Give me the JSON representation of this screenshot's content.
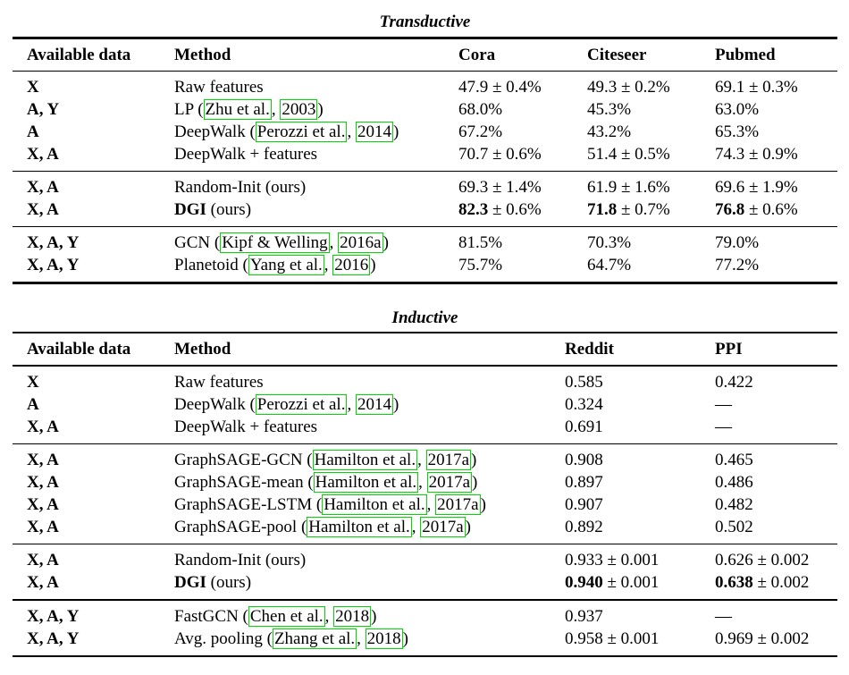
{
  "link_color": "#00d800",
  "tables": [
    {
      "title": "Transductive",
      "columns": [
        "Available data",
        "Method",
        "Cora",
        "Citeseer",
        "Pubmed"
      ],
      "groups": [
        {
          "rows": [
            {
              "available": "X",
              "method": [
                {
                  "text": "Raw features",
                  "style": "plain"
                }
              ],
              "values": [
                [
                  {
                    "text": "47.9 ± 0.4%",
                    "style": "plain"
                  }
                ],
                [
                  {
                    "text": "49.3 ± 0.2%",
                    "style": "plain"
                  }
                ],
                [
                  {
                    "text": "69.1 ± 0.3%",
                    "style": "plain"
                  }
                ]
              ]
            },
            {
              "available": "A, Y",
              "method": [
                {
                  "text": "LP (",
                  "style": "plain"
                },
                {
                  "text": "Zhu et al.",
                  "style": "link"
                },
                {
                  "text": ", ",
                  "style": "plain"
                },
                {
                  "text": "2003",
                  "style": "link"
                },
                {
                  "text": ")",
                  "style": "plain"
                }
              ],
              "values": [
                [
                  {
                    "text": "68.0%",
                    "style": "plain"
                  }
                ],
                [
                  {
                    "text": "45.3%",
                    "style": "plain"
                  }
                ],
                [
                  {
                    "text": "63.0%",
                    "style": "plain"
                  }
                ]
              ]
            },
            {
              "available": "A",
              "method": [
                {
                  "text": "DeepWalk (",
                  "style": "plain"
                },
                {
                  "text": "Perozzi et al.",
                  "style": "link"
                },
                {
                  "text": ", ",
                  "style": "plain"
                },
                {
                  "text": "2014",
                  "style": "link"
                },
                {
                  "text": ")",
                  "style": "plain"
                }
              ],
              "values": [
                [
                  {
                    "text": "67.2%",
                    "style": "plain"
                  }
                ],
                [
                  {
                    "text": "43.2%",
                    "style": "plain"
                  }
                ],
                [
                  {
                    "text": "65.3%",
                    "style": "plain"
                  }
                ]
              ]
            },
            {
              "available": "X, A",
              "method": [
                {
                  "text": "DeepWalk + features",
                  "style": "plain"
                }
              ],
              "values": [
                [
                  {
                    "text": "70.7 ± 0.6%",
                    "style": "plain"
                  }
                ],
                [
                  {
                    "text": "51.4 ± 0.5%",
                    "style": "plain"
                  }
                ],
                [
                  {
                    "text": "74.3 ± 0.9%",
                    "style": "plain"
                  }
                ]
              ]
            }
          ]
        },
        {
          "rows": [
            {
              "available": "X, A",
              "method": [
                {
                  "text": "Random-Init (ours)",
                  "style": "plain"
                }
              ],
              "values": [
                [
                  {
                    "text": "69.3 ± 1.4%",
                    "style": "plain"
                  }
                ],
                [
                  {
                    "text": "61.9 ± 1.6%",
                    "style": "plain"
                  }
                ],
                [
                  {
                    "text": "69.6 ± 1.9%",
                    "style": "plain"
                  }
                ]
              ]
            },
            {
              "available": "X, A",
              "method": [
                {
                  "text": "DGI",
                  "style": "bold"
                },
                {
                  "text": " (ours)",
                  "style": "plain"
                }
              ],
              "values": [
                [
                  {
                    "text": "82.3",
                    "style": "bold"
                  },
                  {
                    "text": " ± 0.6%",
                    "style": "plain"
                  }
                ],
                [
                  {
                    "text": "71.8",
                    "style": "bold"
                  },
                  {
                    "text": " ± 0.7%",
                    "style": "plain"
                  }
                ],
                [
                  {
                    "text": "76.8",
                    "style": "bold"
                  },
                  {
                    "text": " ± 0.6%",
                    "style": "plain"
                  }
                ]
              ]
            }
          ]
        },
        {
          "rows": [
            {
              "available": "X, A, Y",
              "method": [
                {
                  "text": "GCN (",
                  "style": "plain"
                },
                {
                  "text": "Kipf & Welling",
                  "style": "link"
                },
                {
                  "text": ", ",
                  "style": "plain"
                },
                {
                  "text": "2016a",
                  "style": "link"
                },
                {
                  "text": ")",
                  "style": "plain"
                }
              ],
              "values": [
                [
                  {
                    "text": "81.5%",
                    "style": "plain"
                  }
                ],
                [
                  {
                    "text": "70.3%",
                    "style": "plain"
                  }
                ],
                [
                  {
                    "text": "79.0%",
                    "style": "plain"
                  }
                ]
              ]
            },
            {
              "available": "X, A, Y",
              "method": [
                {
                  "text": "Planetoid (",
                  "style": "plain"
                },
                {
                  "text": "Yang et al.",
                  "style": "link"
                },
                {
                  "text": ", ",
                  "style": "plain"
                },
                {
                  "text": "2016",
                  "style": "link"
                },
                {
                  "text": ")",
                  "style": "plain"
                }
              ],
              "values": [
                [
                  {
                    "text": "75.7%",
                    "style": "plain"
                  }
                ],
                [
                  {
                    "text": "64.7%",
                    "style": "plain"
                  }
                ],
                [
                  {
                    "text": "77.2%",
                    "style": "plain"
                  }
                ]
              ]
            }
          ]
        }
      ]
    },
    {
      "title": "Inductive",
      "columns": [
        "Available data",
        "Method",
        "Reddit",
        "PPI"
      ],
      "groups": [
        {
          "rows": [
            {
              "available": "X",
              "method": [
                {
                  "text": "Raw features",
                  "style": "plain"
                }
              ],
              "values": [
                [
                  {
                    "text": "0.585",
                    "style": "plain"
                  }
                ],
                [
                  {
                    "text": "0.422",
                    "style": "plain"
                  }
                ]
              ]
            },
            {
              "available": "A",
              "method": [
                {
                  "text": "DeepWalk (",
                  "style": "plain"
                },
                {
                  "text": "Perozzi et al.",
                  "style": "link"
                },
                {
                  "text": ", ",
                  "style": "plain"
                },
                {
                  "text": "2014",
                  "style": "link"
                },
                {
                  "text": ")",
                  "style": "plain"
                }
              ],
              "values": [
                [
                  {
                    "text": "0.324",
                    "style": "plain"
                  }
                ],
                [
                  {
                    "text": "—",
                    "style": "plain"
                  }
                ]
              ]
            },
            {
              "available": "X, A",
              "method": [
                {
                  "text": "DeepWalk + features",
                  "style": "plain"
                }
              ],
              "values": [
                [
                  {
                    "text": "0.691",
                    "style": "plain"
                  }
                ],
                [
                  {
                    "text": "—",
                    "style": "plain"
                  }
                ]
              ]
            }
          ]
        },
        {
          "rows": [
            {
              "available": "X, A",
              "method": [
                {
                  "text": "GraphSAGE-GCN (",
                  "style": "plain"
                },
                {
                  "text": "Hamilton et al.",
                  "style": "link"
                },
                {
                  "text": ", ",
                  "style": "plain"
                },
                {
                  "text": "2017a",
                  "style": "link"
                },
                {
                  "text": ")",
                  "style": "plain"
                }
              ],
              "values": [
                [
                  {
                    "text": "0.908",
                    "style": "plain"
                  }
                ],
                [
                  {
                    "text": "0.465",
                    "style": "plain"
                  }
                ]
              ]
            },
            {
              "available": "X, A",
              "method": [
                {
                  "text": "GraphSAGE-mean (",
                  "style": "plain"
                },
                {
                  "text": "Hamilton et al.",
                  "style": "link"
                },
                {
                  "text": ", ",
                  "style": "plain"
                },
                {
                  "text": "2017a",
                  "style": "link"
                },
                {
                  "text": ")",
                  "style": "plain"
                }
              ],
              "values": [
                [
                  {
                    "text": "0.897",
                    "style": "plain"
                  }
                ],
                [
                  {
                    "text": "0.486",
                    "style": "plain"
                  }
                ]
              ]
            },
            {
              "available": "X, A",
              "method": [
                {
                  "text": "GraphSAGE-LSTM (",
                  "style": "plain"
                },
                {
                  "text": "Hamilton et al.",
                  "style": "link"
                },
                {
                  "text": ", ",
                  "style": "plain"
                },
                {
                  "text": "2017a",
                  "style": "link"
                },
                {
                  "text": ")",
                  "style": "plain"
                }
              ],
              "values": [
                [
                  {
                    "text": "0.907",
                    "style": "plain"
                  }
                ],
                [
                  {
                    "text": "0.482",
                    "style": "plain"
                  }
                ]
              ]
            },
            {
              "available": "X, A",
              "method": [
                {
                  "text": "GraphSAGE-pool (",
                  "style": "plain"
                },
                {
                  "text": "Hamilton et al.",
                  "style": "link"
                },
                {
                  "text": ", ",
                  "style": "plain"
                },
                {
                  "text": "2017a",
                  "style": "link"
                },
                {
                  "text": ")",
                  "style": "plain"
                }
              ],
              "values": [
                [
                  {
                    "text": "0.892",
                    "style": "plain"
                  }
                ],
                [
                  {
                    "text": "0.502",
                    "style": "plain"
                  }
                ]
              ]
            }
          ]
        },
        {
          "rows": [
            {
              "available": "X, A",
              "method": [
                {
                  "text": "Random-Init (ours)",
                  "style": "plain"
                }
              ],
              "values": [
                [
                  {
                    "text": "0.933 ± 0.001",
                    "style": "plain"
                  }
                ],
                [
                  {
                    "text": "0.626 ± 0.002",
                    "style": "plain"
                  }
                ]
              ]
            },
            {
              "available": "X, A",
              "method": [
                {
                  "text": "DGI",
                  "style": "bold"
                },
                {
                  "text": " (ours)",
                  "style": "plain"
                }
              ],
              "values": [
                [
                  {
                    "text": "0.940",
                    "style": "bold"
                  },
                  {
                    "text": " ± 0.001",
                    "style": "plain"
                  }
                ],
                [
                  {
                    "text": "0.638",
                    "style": "bold"
                  },
                  {
                    "text": " ± 0.002",
                    "style": "plain"
                  }
                ]
              ]
            }
          ]
        },
        {
          "rows": [
            {
              "available": "X, A, Y",
              "method": [
                {
                  "text": "FastGCN (",
                  "style": "plain"
                },
                {
                  "text": "Chen et al.",
                  "style": "link"
                },
                {
                  "text": ", ",
                  "style": "plain"
                },
                {
                  "text": "2018",
                  "style": "link"
                },
                {
                  "text": ")",
                  "style": "plain"
                }
              ],
              "values": [
                [
                  {
                    "text": "0.937",
                    "style": "plain"
                  }
                ],
                [
                  {
                    "text": "—",
                    "style": "plain"
                  }
                ]
              ]
            },
            {
              "available": "X, A, Y",
              "method": [
                {
                  "text": "Avg. pooling (",
                  "style": "plain"
                },
                {
                  "text": "Zhang et al.",
                  "style": "link"
                },
                {
                  "text": ", ",
                  "style": "plain"
                },
                {
                  "text": "2018",
                  "style": "link"
                },
                {
                  "text": ")",
                  "style": "plain"
                }
              ],
              "values": [
                [
                  {
                    "text": "0.958 ± 0.001",
                    "style": "plain"
                  }
                ],
                [
                  {
                    "text": "0.969 ± 0.002",
                    "style": "plain"
                  }
                ]
              ]
            }
          ]
        }
      ]
    }
  ]
}
